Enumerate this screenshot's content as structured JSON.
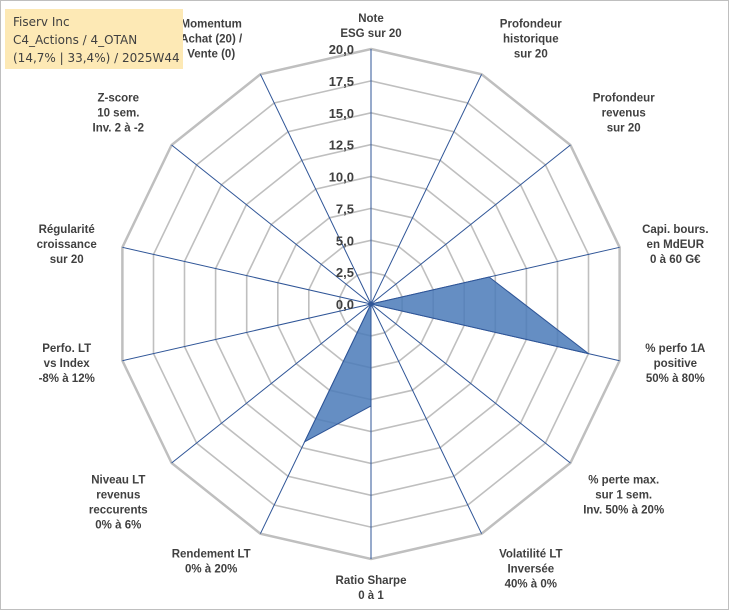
{
  "title_box": {
    "line1": "Fiserv Inc",
    "line2": "C4_Actions / 4_OTAN",
    "line3": "(14,7% | 33,4%) / 2025W44"
  },
  "colors": {
    "grid": "#bfbfbf",
    "spoke": "#2f5597",
    "fill": "#4a7ab8",
    "stroke": "#2f5597",
    "title_bg": "#fde9b5"
  },
  "chart_data": {
    "type": "radar",
    "rmax": 20,
    "tick_labels": [
      "0,0",
      "2,5",
      "5,0",
      "7,5",
      "10,0",
      "12,5",
      "15,0",
      "17,5",
      "20,0"
    ],
    "categories": [
      [
        "Note",
        "ESG sur 20"
      ],
      [
        "Profondeur",
        "historique",
        "sur 20"
      ],
      [
        "Profondeur",
        "revenus",
        "sur 20"
      ],
      [
        "Capi. bours.",
        "en MdEUR",
        "0 à 60 G€"
      ],
      [
        "% perfo 1A",
        "positive",
        "50% à 80%"
      ],
      [
        "% perte max.",
        "sur 1 sem.",
        "Inv. 50% à 20%"
      ],
      [
        "Volatilité LT",
        "Inversée",
        "40% à 0%"
      ],
      [
        "Ratio Sharpe",
        "0 à 1"
      ],
      [
        "Rendement LT",
        "0% à 20%"
      ],
      [
        "Niveau LT",
        "revenus",
        "reccurents",
        "0% à 6%"
      ],
      [
        "Perfo. LT",
        "vs Index",
        "-8% à 12%"
      ],
      [
        "Régularité",
        "croissance",
        "sur 20"
      ],
      [
        "Z-score",
        "10 sem.",
        "Inv. 2 à -2"
      ],
      [
        "Momentum",
        "Achat (20) /",
        "Vente (0)"
      ]
    ],
    "series": [
      {
        "name": "Fiserv Inc",
        "values": [
          0,
          0,
          0,
          9.5,
          17.5,
          0,
          0,
          8.0,
          12.0,
          0,
          0,
          0,
          0,
          0
        ]
      }
    ]
  }
}
